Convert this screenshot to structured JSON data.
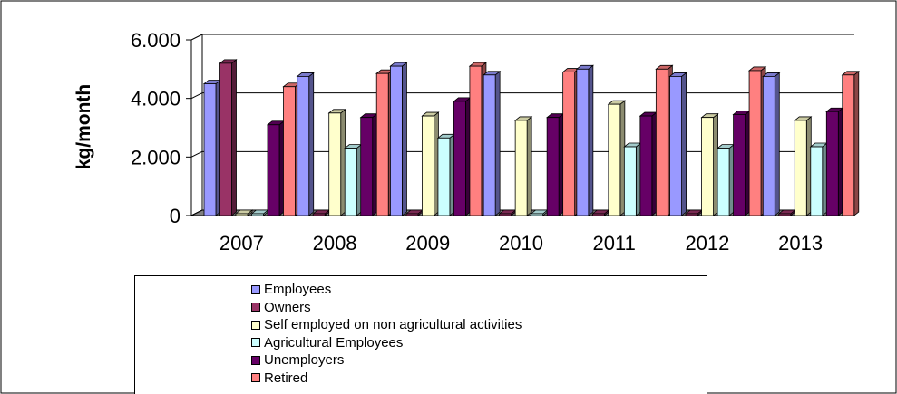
{
  "chart_data": {
    "type": "bar",
    "title": "",
    "xlabel": "",
    "ylabel": "kg/month",
    "ylim": [
      0,
      6000
    ],
    "yticks": [
      0,
      2000,
      4000,
      6000
    ],
    "ytick_labels": [
      "0",
      "2.000",
      "4.000",
      "6.000"
    ],
    "grid": true,
    "legend_position": "bottom",
    "categories": [
      "2007",
      "2008",
      "2009",
      "2010",
      "2011",
      "2012",
      "2013"
    ],
    "series": [
      {
        "name": "Employees",
        "color": "#9999FF",
        "values": [
          4500,
          4750,
          5100,
          4800,
          5000,
          4750,
          4750
        ]
      },
      {
        "name": "Owners",
        "color": "#993366",
        "values": [
          5200,
          0,
          0,
          0,
          0,
          0,
          0
        ]
      },
      {
        "name": "Self employed on non agricultural activities",
        "color": "#FFFFCC",
        "values": [
          0,
          3500,
          3400,
          3250,
          3800,
          3350,
          3250
        ]
      },
      {
        "name": "Agricultural Employees",
        "color": "#CCFFFF",
        "values": [
          0,
          2300,
          2650,
          0,
          2350,
          2300,
          2350
        ]
      },
      {
        "name": "Unemployers",
        "color": "#660066",
        "values": [
          3100,
          3350,
          3900,
          3350,
          3400,
          3450,
          3550
        ]
      },
      {
        "name": "Retired",
        "color": "#FF8080",
        "values": [
          4400,
          4850,
          5100,
          4900,
          5000,
          4950,
          4800
        ]
      }
    ]
  }
}
